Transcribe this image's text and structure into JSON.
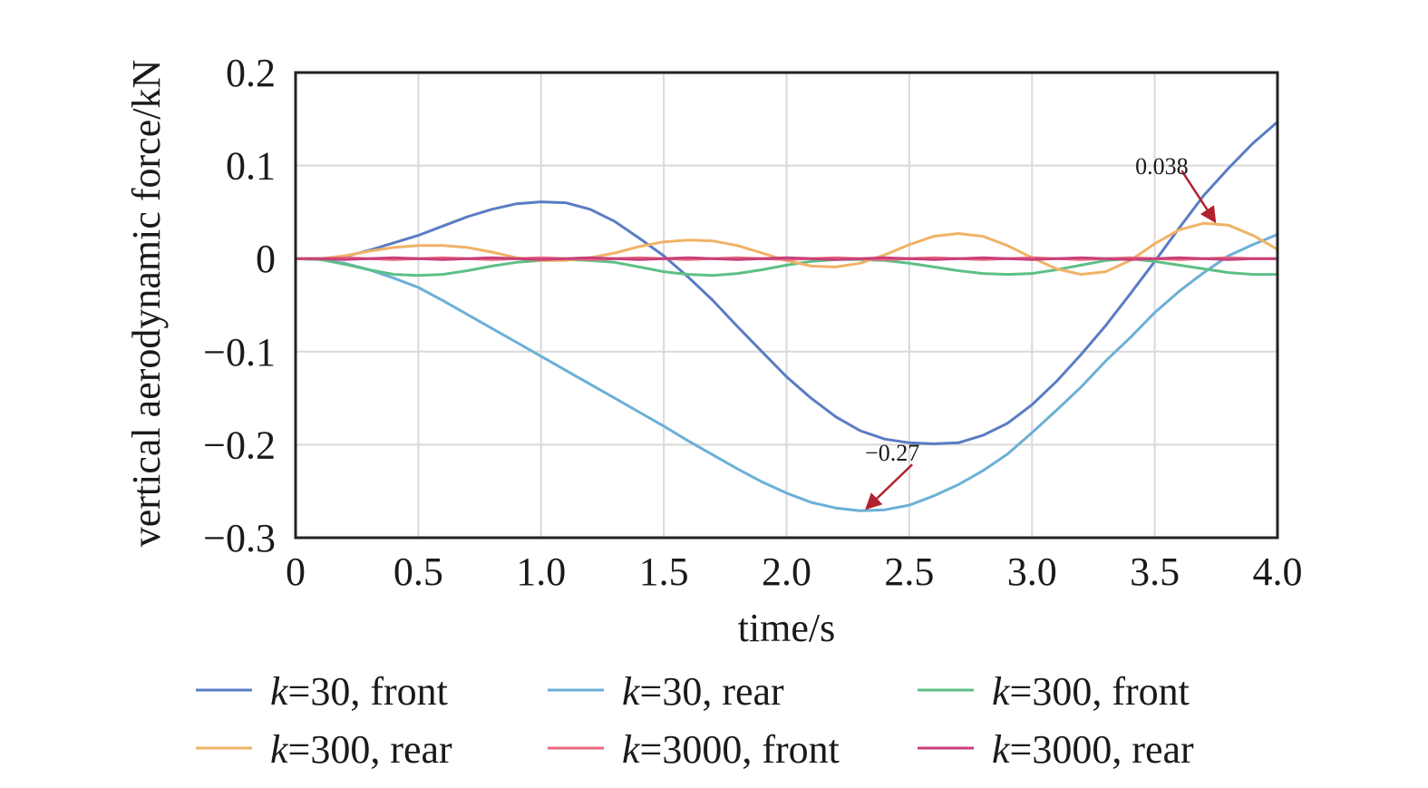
{
  "chart_data": {
    "type": "line",
    "xlabel": "time/s",
    "ylabel": "vertical aerodynamic force/kN",
    "xlim": [
      0,
      4.0
    ],
    "ylim": [
      -0.3,
      0.2
    ],
    "x_ticks": [
      0,
      0.5,
      1.0,
      1.5,
      2.0,
      2.5,
      3.0,
      3.5,
      4.0
    ],
    "x_tick_labels": [
      "0",
      "0.5",
      "1.0",
      "1.5",
      "2.0",
      "2.5",
      "3.0",
      "3.5",
      "4.0"
    ],
    "y_ticks": [
      0.2,
      0.1,
      0,
      -0.1,
      -0.2,
      -0.3
    ],
    "y_tick_labels": [
      "0.2",
      "0.1",
      "0",
      "−0.1",
      "−0.2",
      "−0.3"
    ],
    "grid": true,
    "legend_position": "bottom",
    "x": [
      0,
      0.1,
      0.2,
      0.3,
      0.4,
      0.5,
      0.6,
      0.7,
      0.8,
      0.9,
      1.0,
      1.1,
      1.2,
      1.3,
      1.4,
      1.5,
      1.6,
      1.7,
      1.8,
      1.9,
      2.0,
      2.1,
      2.2,
      2.3,
      2.4,
      2.5,
      2.6,
      2.7,
      2.8,
      2.9,
      3.0,
      3.1,
      3.2,
      3.3,
      3.4,
      3.5,
      3.6,
      3.7,
      3.8,
      3.9,
      4.0
    ],
    "series": [
      {
        "name": "k=30, front",
        "k": "k",
        "suffix": "=30, front",
        "color": "#5a7cc4",
        "values": [
          0,
          0,
          0.002,
          0.009,
          0.017,
          0.025,
          0.035,
          0.045,
          0.053,
          0.059,
          0.061,
          0.06,
          0.053,
          0.04,
          0.022,
          0.003,
          -0.02,
          -0.045,
          -0.073,
          -0.1,
          -0.127,
          -0.15,
          -0.17,
          -0.185,
          -0.194,
          -0.198,
          -0.199,
          -0.198,
          -0.19,
          -0.177,
          -0.157,
          -0.132,
          -0.103,
          -0.072,
          -0.038,
          -0.003,
          0.033,
          0.068,
          0.097,
          0.124,
          0.147
        ]
      },
      {
        "name": "k=30, rear",
        "k": "k",
        "suffix": "=30, rear",
        "color": "#6bb0d6",
        "values": [
          0,
          -0.001,
          -0.005,
          -0.012,
          -0.021,
          -0.031,
          -0.045,
          -0.06,
          -0.075,
          -0.09,
          -0.105,
          -0.12,
          -0.135,
          -0.15,
          -0.165,
          -0.18,
          -0.196,
          -0.211,
          -0.226,
          -0.24,
          -0.252,
          -0.262,
          -0.268,
          -0.271,
          -0.27,
          -0.265,
          -0.255,
          -0.243,
          -0.228,
          -0.21,
          -0.187,
          -0.163,
          -0.138,
          -0.11,
          -0.085,
          -0.058,
          -0.035,
          -0.015,
          0.003,
          0.015,
          0.026
        ]
      },
      {
        "name": "k=300, front",
        "k": "k",
        "suffix": "=300, front",
        "color": "#5ebf86",
        "values": [
          0,
          -0.001,
          -0.006,
          -0.012,
          -0.017,
          -0.018,
          -0.017,
          -0.013,
          -0.008,
          -0.004,
          -0.002,
          -0.001,
          -0.002,
          -0.004,
          -0.009,
          -0.014,
          -0.017,
          -0.018,
          -0.016,
          -0.012,
          -0.007,
          -0.003,
          -0.001,
          -0.001,
          -0.002,
          -0.005,
          -0.009,
          -0.013,
          -0.016,
          -0.017,
          -0.016,
          -0.012,
          -0.007,
          -0.002,
          0,
          -0.003,
          -0.007,
          -0.011,
          -0.015,
          -0.017,
          -0.017
        ]
      },
      {
        "name": "k=300, rear",
        "k": "k",
        "suffix": "=300, rear",
        "color": "#f0b266",
        "values": [
          0,
          0,
          0.003,
          0.008,
          0.012,
          0.014,
          0.014,
          0.012,
          0.007,
          0.001,
          -0.002,
          -0.002,
          0.001,
          0.006,
          0.013,
          0.018,
          0.02,
          0.019,
          0.014,
          0.006,
          -0.002,
          -0.008,
          -0.009,
          -0.005,
          0.004,
          0.015,
          0.024,
          0.027,
          0.024,
          0.014,
          0.001,
          -0.011,
          -0.017,
          -0.014,
          -0.002,
          0.016,
          0.031,
          0.038,
          0.036,
          0.025,
          0.01
        ]
      },
      {
        "name": "k=3000, front",
        "k": "k",
        "suffix": "=3000, front",
        "color": "#e86a7d",
        "values": [
          0,
          0,
          0.001,
          0,
          -0.001,
          0,
          0.001,
          0,
          -0.001,
          0,
          0.001,
          0,
          -0.001,
          0,
          0.001,
          0,
          -0.001,
          0,
          0.001,
          0,
          -0.001,
          0,
          0.001,
          0,
          -0.001,
          0,
          0.001,
          0,
          -0.001,
          0,
          0.001,
          0,
          -0.001,
          0,
          0.001,
          0,
          -0.001,
          0,
          0.001,
          0,
          0
        ]
      },
      {
        "name": "k=3000, rear",
        "k": "k",
        "suffix": "=3000, rear",
        "color": "#c8407a",
        "values": [
          0,
          0,
          -0.001,
          0,
          0.001,
          0,
          -0.001,
          0,
          0.001,
          0,
          -0.001,
          0,
          0.001,
          0,
          -0.001,
          0,
          0.001,
          0,
          -0.001,
          0,
          0.001,
          0,
          -0.001,
          0,
          0.001,
          0,
          -0.001,
          0,
          0.001,
          0,
          -0.001,
          0,
          0.001,
          0,
          -0.001,
          0,
          0.001,
          0,
          -0.001,
          0,
          0
        ]
      }
    ],
    "annotations": [
      {
        "text": "0.038",
        "x": 3.75,
        "y": 0.038,
        "color": "#b0222c"
      },
      {
        "text": "−0.27",
        "x": 2.32,
        "y": -0.27,
        "color": "#b0222c"
      }
    ]
  }
}
